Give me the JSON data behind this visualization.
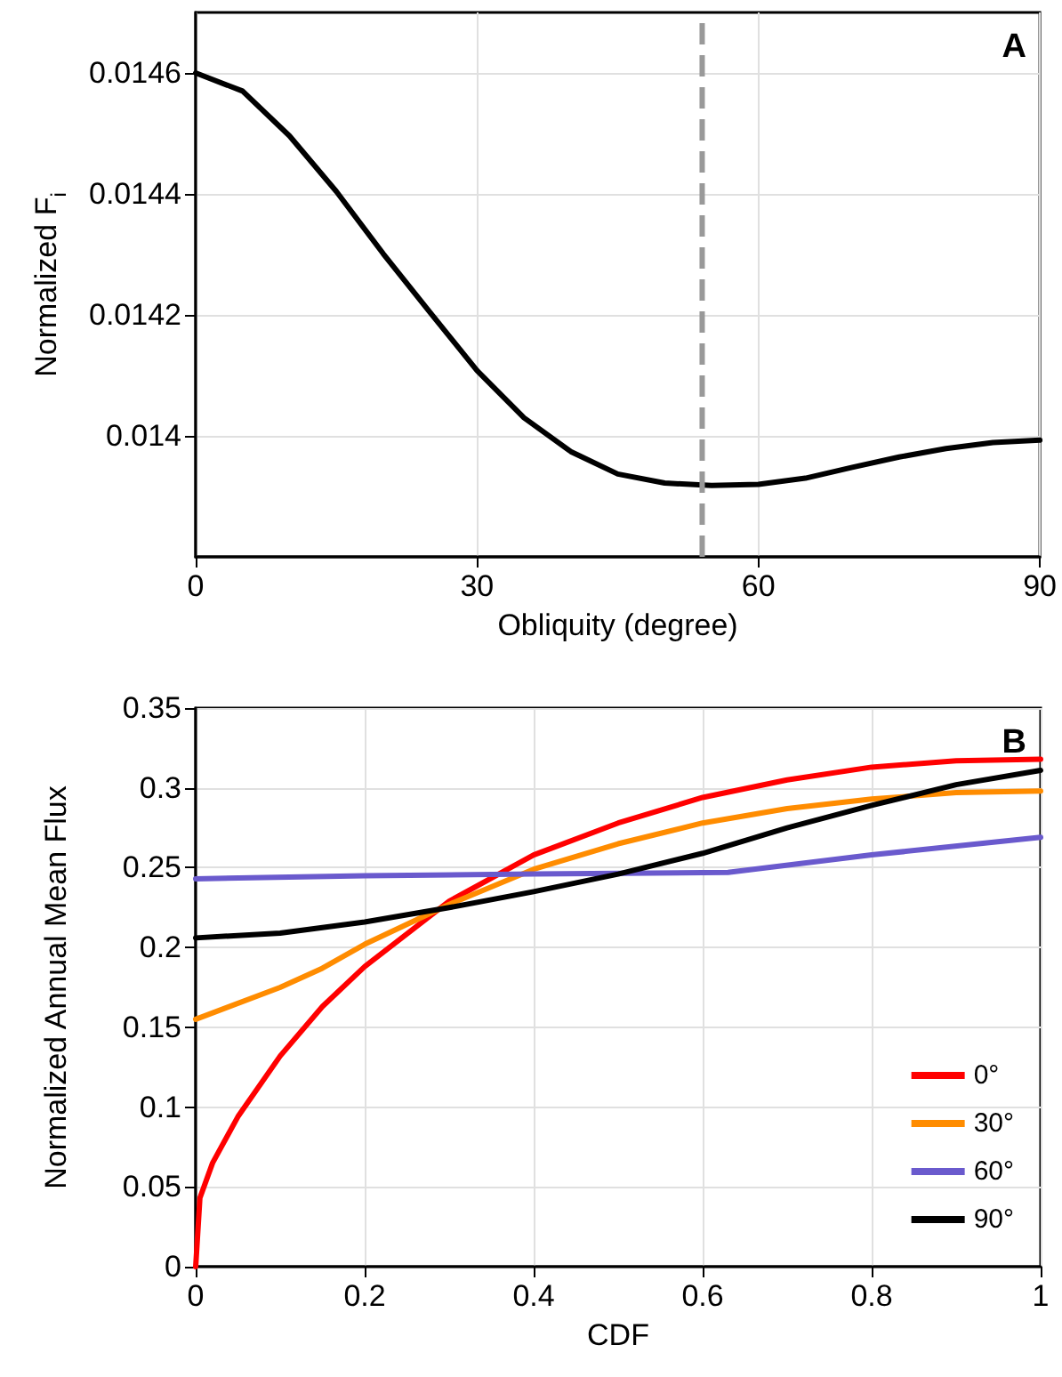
{
  "chart_data": [
    {
      "type": "line",
      "xlabel": "Obliquity (degree)",
      "ylabel": "Normalized F$_{i}$",
      "annotations": [
        "A"
      ],
      "xlim": [
        0,
        90
      ],
      "xticks": [
        0,
        30,
        60,
        90
      ],
      "ylim": [
        0.0138,
        0.0147
      ],
      "yticks": [
        0.014,
        0.0142,
        0.0144,
        0.0146
      ],
      "grid": true,
      "legend": false,
      "line_style": "solid",
      "marker": "none",
      "ref_lines": [
        {
          "axis": "x",
          "value": 54,
          "color": "#999999",
          "line_style": "dashed"
        }
      ],
      "series": [
        {
          "color": "#000000",
          "x": [
            0,
            5,
            10,
            15,
            20,
            25,
            30,
            35,
            40,
            45,
            50,
            55,
            60,
            65,
            70,
            75,
            80,
            85,
            90
          ],
          "values": [
            0.0146,
            0.01457,
            0.014496,
            0.014404,
            0.014301,
            0.014204,
            0.014108,
            0.01403,
            0.013974,
            0.013937,
            0.013922,
            0.013918,
            0.01392,
            0.01393,
            0.013948,
            0.013965,
            0.013979,
            0.013989,
            0.013993
          ]
        }
      ]
    },
    {
      "type": "line",
      "xlabel": "CDF",
      "ylabel": "Normalized Annual Mean Flux",
      "annotations": [
        "B"
      ],
      "xlim": [
        0,
        1
      ],
      "xticks": [
        0,
        0.2,
        0.4,
        0.6,
        0.8,
        1
      ],
      "ylim": [
        0,
        0.35
      ],
      "yticks": [
        0,
        0.05,
        0.1,
        0.15,
        0.2,
        0.25,
        0.3,
        0.35
      ],
      "grid": true,
      "legend": "bottom right",
      "line_style": "solid",
      "marker": "none",
      "series": [
        {
          "name": "0°",
          "color": "#ff0000",
          "x": [
            0,
            0.005,
            0.02,
            0.05,
            0.1,
            0.15,
            0.2,
            0.3,
            0.4,
            0.5,
            0.6,
            0.7,
            0.8,
            0.9,
            1
          ],
          "values": [
            0,
            0.043,
            0.065,
            0.094,
            0.132,
            0.163,
            0.188,
            0.229,
            0.258,
            0.278,
            0.294,
            0.305,
            0.313,
            0.317,
            0.318
          ]
        },
        {
          "name": "30°",
          "color": "#ff8c00",
          "x": [
            0,
            0.1,
            0.15,
            0.2,
            0.3,
            0.4,
            0.5,
            0.6,
            0.7,
            0.8,
            0.9,
            1
          ],
          "values": [
            0.155,
            0.175,
            0.187,
            0.202,
            0.227,
            0.249,
            0.265,
            0.278,
            0.287,
            0.293,
            0.297,
            0.298
          ]
        },
        {
          "name": "60°",
          "color": "#6a5acd",
          "x": [
            0,
            0.2,
            0.4,
            0.63,
            0.8,
            1
          ],
          "values": [
            0.243,
            0.245,
            0.246,
            0.247,
            0.258,
            0.269
          ]
        },
        {
          "name": "90°",
          "color": "#000000",
          "x": [
            0,
            0.1,
            0.2,
            0.3,
            0.4,
            0.5,
            0.6,
            0.7,
            0.8,
            0.9,
            1
          ],
          "values": [
            0.206,
            0.209,
            0.216,
            0.225,
            0.235,
            0.246,
            0.259,
            0.275,
            0.289,
            0.302,
            0.311
          ]
        }
      ]
    }
  ]
}
